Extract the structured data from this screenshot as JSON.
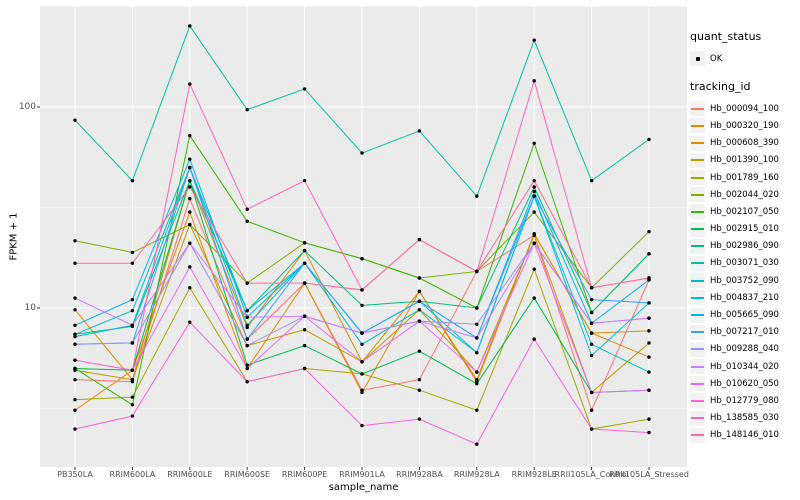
{
  "chart": {
    "panel_bg": "#EBEBEB",
    "grid_color": "#FFFFFF",
    "tick_color": "#333333",
    "axis_text_color": "#4D4D4D",
    "point_color": "#000000"
  },
  "y_axis": {
    "title": "FPKM + 1",
    "scale": "log10",
    "ticks": [
      {
        "label": "100",
        "value": 100
      },
      {
        "label": "10",
        "value": 10
      }
    ],
    "minor_values": [
      3.162,
      31.62,
      316.2
    ]
  },
  "x_axis": {
    "title": "sample_name"
  },
  "legend": {
    "quant_status": {
      "title": "quant_status",
      "items": [
        {
          "label": "OK",
          "marker": "black-point"
        }
      ]
    },
    "tracking_id": {
      "title": "tracking_id"
    }
  },
  "chart_data": {
    "type": "line",
    "title": "",
    "xlabel": "sample_name",
    "ylabel": "FPKM + 1",
    "yscale": "log10",
    "ylim": [
      1.6,
      310
    ],
    "grid": true,
    "legend_position": "right",
    "categories": [
      "PB350LA",
      "RRIM600LA",
      "RRIM600LE",
      "RRIM600SE",
      "RRIM600PE",
      "RRIM901LA",
      "RRIM928BA",
      "RRIM928LA",
      "RRIM928LE",
      "RRII105LA_Control",
      "RRII105LA_Stressed"
    ],
    "series": [
      {
        "name": "Hb_000094_100",
        "color": "#F8766D",
        "quant_status": "OK",
        "values": [
          4.4,
          4.3,
          35,
          7.0,
          13.3,
          3.9,
          4.4,
          15.2,
          23,
          3.1,
          13.8
        ]
      },
      {
        "name": "Hb_000320_190",
        "color": "#E58700",
        "quant_status": "OK",
        "values": [
          3.1,
          4.9,
          30,
          5.0,
          13.3,
          3.8,
          12.1,
          4.3,
          23.4,
          7.5,
          5.7
        ]
      },
      {
        "name": "Hb_000608_390",
        "color": "#D89000",
        "quant_status": "OK",
        "values": [
          9.8,
          4.4,
          43,
          8.0,
          19.3,
          5.4,
          12.1,
          4.4,
          23.4,
          7.5,
          7.7
        ]
      },
      {
        "name": "Hb_001390_100",
        "color": "#C09B00",
        "quant_status": "OK",
        "values": [
          4.9,
          4.4,
          26,
          6.5,
          7.8,
          5.4,
          9.8,
          4.8,
          23,
          3.8,
          6.7
        ]
      },
      {
        "name": "Hb_001789_160",
        "color": "#A3A500",
        "quant_status": "OK",
        "values": [
          3.5,
          3.6,
          12.6,
          4.3,
          5.0,
          4.7,
          3.9,
          3.1,
          15.6,
          2.5,
          2.8
        ]
      },
      {
        "name": "Hb_002044_020",
        "color": "#7CAE00",
        "quant_status": "OK",
        "values": [
          21.6,
          18.9,
          26,
          13.3,
          21.1,
          17.6,
          14.1,
          15.2,
          30,
          12.6,
          24
        ]
      },
      {
        "name": "Hb_002107_050",
        "color": "#39B600",
        "quant_status": "OK",
        "values": [
          5.0,
          3.3,
          72,
          27,
          21.1,
          17.6,
          14.1,
          10,
          66,
          9.5,
          18.6
        ]
      },
      {
        "name": "Hb_002915_010",
        "color": "#00BB4E",
        "quant_status": "OK",
        "values": [
          5.0,
          4.9,
          43,
          5.2,
          6.5,
          4.7,
          6.1,
          4.2,
          11.2,
          3.8,
          3.9
        ]
      },
      {
        "name": "Hb_002986_090",
        "color": "#00BF7D",
        "quant_status": "OK",
        "values": [
          7.4,
          8.1,
          43,
          9.7,
          19.3,
          10.3,
          10.8,
          10,
          40,
          9.5,
          18.6
        ]
      },
      {
        "name": "Hb_003071_030",
        "color": "#00C1A3",
        "quant_status": "OK",
        "values": [
          86,
          43,
          253,
          97,
          123,
          59,
          76,
          36,
          215,
          43,
          69
        ]
      },
      {
        "name": "Hb_003752_090",
        "color": "#00BFC4",
        "quant_status": "OK",
        "values": [
          7.4,
          9.7,
          50,
          9.7,
          16.7,
          6.6,
          9.8,
          6.0,
          36,
          6.6,
          4.8
        ]
      },
      {
        "name": "Hb_004837_210",
        "color": "#00BAE0",
        "quant_status": "OK",
        "values": [
          7.2,
          8.2,
          50,
          8.2,
          16.7,
          7.5,
          10.8,
          6.0,
          36,
          5.8,
          10.6
        ]
      },
      {
        "name": "Hb_005665_090",
        "color": "#00B0F6",
        "quant_status": "OK",
        "values": [
          8.2,
          11.0,
          55,
          9.0,
          16.7,
          7.5,
          10.8,
          7.1,
          38,
          8.4,
          13.8
        ]
      },
      {
        "name": "Hb_007217_010",
        "color": "#35A2FF",
        "quant_status": "OK",
        "values": [
          6.6,
          6.7,
          50,
          7.0,
          16.7,
          7.5,
          10.8,
          7.1,
          36,
          11.0,
          10.6
        ]
      },
      {
        "name": "Hb_009288_040",
        "color": "#9590FF",
        "quant_status": "OK",
        "values": [
          6.6,
          6.7,
          21,
          6.5,
          9.1,
          7.5,
          8.6,
          8.3,
          21,
          8.4,
          8.9
        ]
      },
      {
        "name": "Hb_010344_020",
        "color": "#C77CFF",
        "quant_status": "OK",
        "values": [
          11.2,
          8.2,
          21,
          9.0,
          9.1,
          7.5,
          8.6,
          7.1,
          21,
          8.4,
          8.9
        ]
      },
      {
        "name": "Hb_010620_050",
        "color": "#E76BF3",
        "quant_status": "OK",
        "values": [
          5.5,
          4.9,
          16,
          5.0,
          9.1,
          5.4,
          8.6,
          4.8,
          21,
          3.8,
          3.9
        ]
      },
      {
        "name": "Hb_012779_080",
        "color": "#FA62DB",
        "quant_status": "OK",
        "values": [
          2.5,
          2.9,
          8.5,
          4.3,
          5.0,
          2.6,
          2.8,
          2.1,
          7.0,
          2.5,
          2.4
        ]
      },
      {
        "name": "Hb_138585_030",
        "color": "#FF62BC",
        "quant_status": "OK",
        "values": [
          5.5,
          4.9,
          130,
          31,
          43,
          12.3,
          21.9,
          15.2,
          135,
          12.6,
          14.1
        ]
      },
      {
        "name": "Hb_148146_010",
        "color": "#FF6A98",
        "quant_status": "OK",
        "values": [
          16.7,
          16.7,
          40,
          13.3,
          13.3,
          12.3,
          21.9,
          15.2,
          43,
          12.6,
          14.1
        ]
      }
    ]
  }
}
